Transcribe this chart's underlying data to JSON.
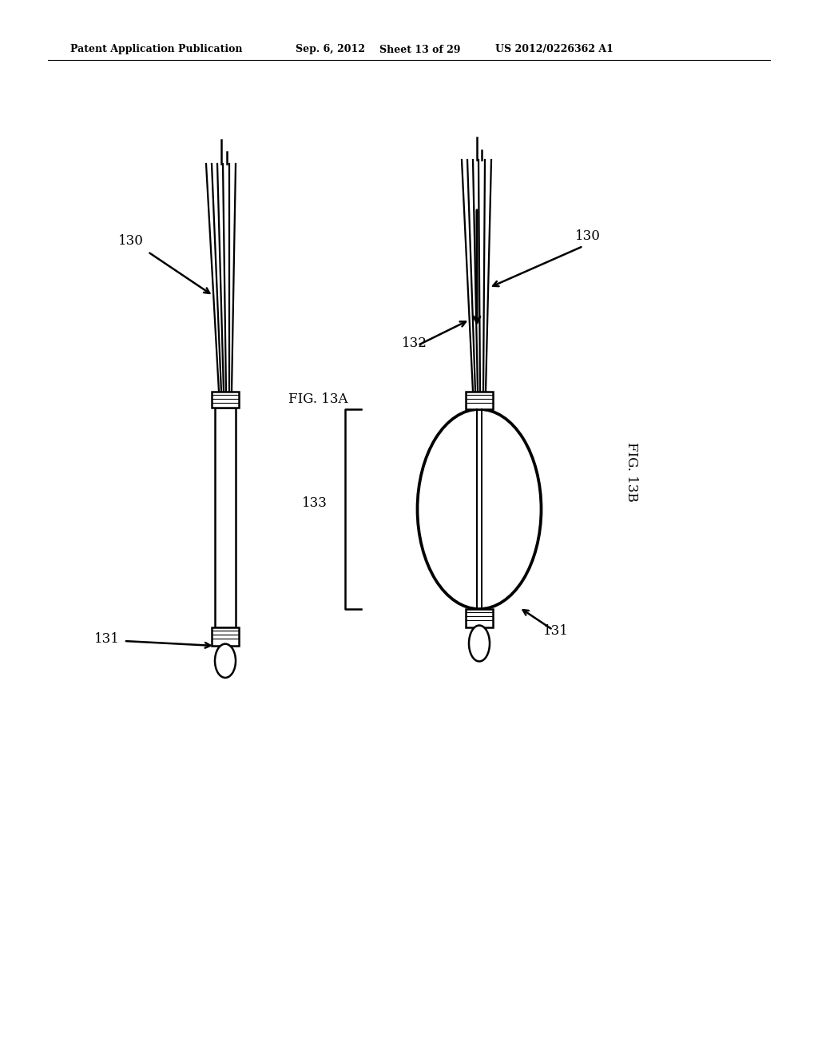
{
  "background_color": "#ffffff",
  "header_line1": "Patent Application Publication",
  "header_line2": "Sep. 6, 2012",
  "header_line3": "Sheet 13 of 29",
  "header_line4": "US 2012/0226362 A1",
  "fig_label_13A": "FIG. 13A",
  "fig_label_13B": "FIG. 13B",
  "label_130_left": "130",
  "label_130_right": "130",
  "label_131_left": "131",
  "label_131_right": "131",
  "label_132": "132",
  "label_133": "133",
  "line_color": "#000000",
  "line_width": 1.8,
  "text_color": "#000000",
  "font_size_label": 12,
  "font_size_header": 9,
  "font_size_fig": 12
}
